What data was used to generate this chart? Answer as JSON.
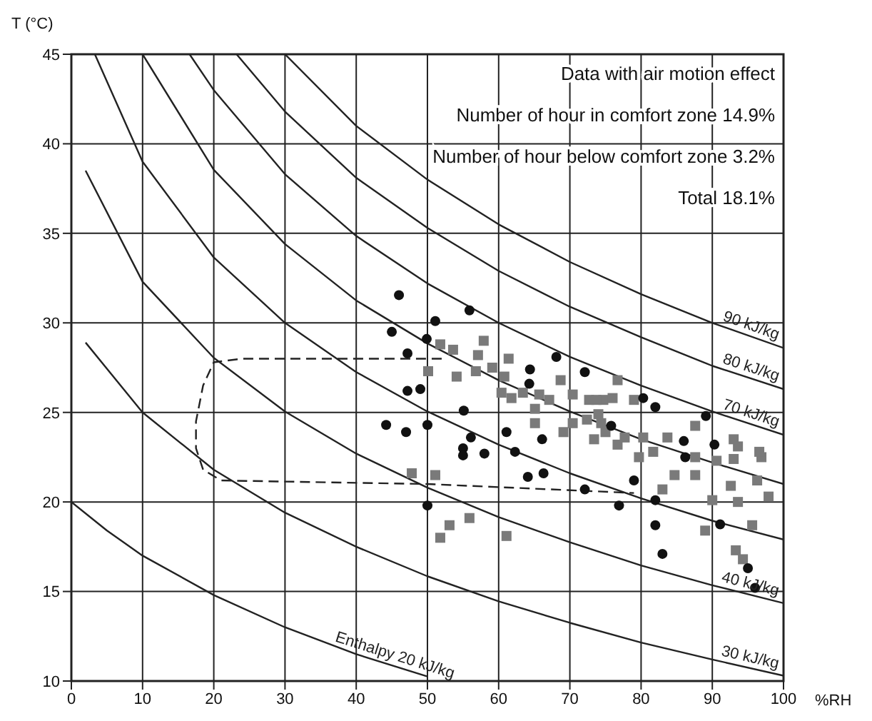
{
  "chart_data": {
    "type": "scatter",
    "ylabel": "T (°C)",
    "xlabel": "%RH",
    "xlim": [
      0,
      100
    ],
    "ylim": [
      10,
      45
    ],
    "xticks": [
      0,
      10,
      20,
      30,
      40,
      50,
      60,
      70,
      80,
      90,
      100
    ],
    "yticks": [
      10,
      15,
      20,
      25,
      30,
      35,
      40,
      45
    ],
    "grid": true,
    "legend": false,
    "annotations": [
      "Data with air motion effect",
      "Number of hour in comfort zone 14.9%",
      "Number of hour below comfort zone 3.2%",
      "Total 18.1%"
    ],
    "series": [
      {
        "type": "line",
        "name": "Enthalpy 20 kJ/kg",
        "color": "#222222",
        "marker": "none",
        "line_style": "solid",
        "x": [
          0,
          5,
          10,
          20,
          30,
          40,
          50
        ],
        "values": [
          20,
          18.4,
          17,
          14.8,
          13,
          11.5,
          10.25
        ]
      },
      {
        "type": "line",
        "name": "30 kJ/kg",
        "color": "#222222",
        "marker": "none",
        "line_style": "solid",
        "x": [
          2,
          10,
          20,
          30,
          40,
          50,
          60,
          70,
          80,
          90,
          100
        ],
        "values": [
          28.9,
          25,
          21.8,
          19.4,
          17.5,
          15.85,
          14.45,
          13.25,
          12.15,
          11.2,
          10.3
        ]
      },
      {
        "type": "line",
        "name": "40 kJ/kg",
        "color": "#222222",
        "marker": "none",
        "line_style": "solid",
        "x": [
          2,
          10,
          20,
          30,
          40,
          50,
          60,
          70,
          80,
          90,
          100
        ],
        "values": [
          38.5,
          32.3,
          28.05,
          25.05,
          22.7,
          20.8,
          19.15,
          17.75,
          16.45,
          15.35,
          14.35
        ]
      },
      {
        "type": "line",
        "color": "#222222",
        "marker": "none",
        "line_style": "solid",
        "x": [
          3.3,
          10,
          20,
          30,
          40,
          50,
          60,
          70,
          80,
          90,
          100
        ],
        "values": [
          45,
          39,
          33.65,
          30,
          27.25,
          25.05,
          23.2,
          21.6,
          20.2,
          18.95,
          17.9
        ]
      },
      {
        "type": "line",
        "color": "#222222",
        "marker": "none",
        "line_style": "solid",
        "x": [
          10,
          20,
          30,
          40,
          50,
          60,
          70,
          80,
          90,
          100
        ],
        "values": [
          45,
          38.55,
          34.4,
          31.25,
          28.85,
          26.8,
          25.05,
          23.5,
          22.2,
          21
        ]
      },
      {
        "type": "line",
        "name": "70 kJ/kg",
        "color": "#222222",
        "marker": "none",
        "line_style": "solid",
        "x": [
          16.6,
          20,
          30,
          40,
          50,
          60,
          70,
          80,
          90,
          100
        ],
        "values": [
          45,
          43,
          38.3,
          34.85,
          32.2,
          30,
          28.1,
          26.5,
          25.05,
          23.75
        ]
      },
      {
        "type": "line",
        "name": "80 kJ/kg",
        "color": "#222222",
        "marker": "none",
        "line_style": "solid",
        "x": [
          23.2,
          30,
          40,
          50,
          60,
          70,
          80,
          90,
          100
        ],
        "values": [
          45,
          41.8,
          38.1,
          35.3,
          32.9,
          30.9,
          29.2,
          27.6,
          26.3
        ]
      },
      {
        "type": "line",
        "name": "90 kJ/kg",
        "color": "#222222",
        "marker": "none",
        "line_style": "solid",
        "x": [
          30,
          40,
          50,
          60,
          70,
          80,
          90,
          100
        ],
        "values": [
          45,
          41,
          38,
          35.5,
          33.4,
          31.6,
          30,
          28.6
        ]
      },
      {
        "type": "line",
        "color": "#222222",
        "marker": "none",
        "line_style": "dashed",
        "x": [
          52,
          24,
          20,
          18.5,
          17.5,
          17.5,
          18.5,
          21,
          50,
          79
        ],
        "values": [
          28,
          28,
          27.8,
          26.5,
          24.5,
          23,
          21.8,
          21.2,
          21,
          20.5
        ]
      },
      {
        "color": "#7a7a7a",
        "marker": "square",
        "x": [
          51.8,
          53.6,
          57.1,
          57.9,
          50.1,
          54.1,
          56.8,
          59.1,
          61.4,
          60.8,
          60.4,
          61.8,
          63.4,
          65.7,
          67.1,
          65.1,
          68.7,
          70.4,
          72.7,
          74.7,
          76,
          72.4,
          74,
          75,
          73.4,
          76.7,
          69.1,
          70.4,
          65.1,
          47.8,
          51.1,
          53.1,
          55.9,
          61.1,
          51.8,
          76.7,
          73.7,
          79,
          87.6,
          77.7,
          80.3,
          83.7,
          79.7,
          81.7,
          87.6,
          90.6,
          93,
          96.9,
          84.7,
          87.6,
          92.6,
          96.3,
          90,
          93.6,
          97.9,
          83,
          95.6,
          89,
          93.3,
          94.3,
          93.6,
          93,
          96.6,
          74.4
        ],
        "values": [
          28.8,
          28.5,
          28.2,
          29,
          27.3,
          27,
          27.3,
          27.5,
          28,
          27,
          26.1,
          25.8,
          26.1,
          26,
          25.7,
          25.2,
          26.8,
          26,
          25.7,
          25.7,
          25.8,
          24.6,
          24.9,
          23.9,
          23.5,
          23.2,
          23.9,
          24.4,
          24.4,
          21.6,
          21.5,
          18.7,
          19.1,
          18.1,
          18,
          26.8,
          25.7,
          25.7,
          24.25,
          23.6,
          23.6,
          23.6,
          22.5,
          22.8,
          22.5,
          22.3,
          22.4,
          22.5,
          21.5,
          21.5,
          20.9,
          21.2,
          20.1,
          20,
          20.3,
          20.7,
          18.7,
          18.4,
          17.3,
          16.8,
          23.1,
          23.5,
          22.8,
          24.4
        ]
      },
      {
        "color": "#111111",
        "marker": "circle",
        "x": [
          46,
          55.9,
          51.1,
          45,
          49.9,
          47.2,
          68.1,
          64.4,
          72.1,
          64.3,
          47.2,
          49,
          55.1,
          44.2,
          47,
          50,
          56.1,
          61.1,
          55,
          55,
          58,
          62.3,
          66.1,
          66.3,
          64.1,
          75.8,
          72.1,
          50,
          82,
          89.1,
          90.3,
          86,
          86.2,
          79,
          82,
          76.9,
          91.1,
          82,
          83,
          95,
          96,
          80.3
        ],
        "values": [
          31.55,
          30.7,
          30.1,
          29.5,
          29.1,
          28.3,
          28.1,
          27.4,
          27.25,
          26.6,
          26.2,
          26.3,
          25.1,
          24.3,
          23.9,
          24.3,
          23.6,
          23.9,
          23,
          22.6,
          22.7,
          22.8,
          23.5,
          21.6,
          21.4,
          24.25,
          20.7,
          19.8,
          25.3,
          24.8,
          23.2,
          23.4,
          22.5,
          21.2,
          20.1,
          19.8,
          18.75,
          18.7,
          17.1,
          16.3,
          15.2,
          25.8
        ]
      }
    ]
  }
}
